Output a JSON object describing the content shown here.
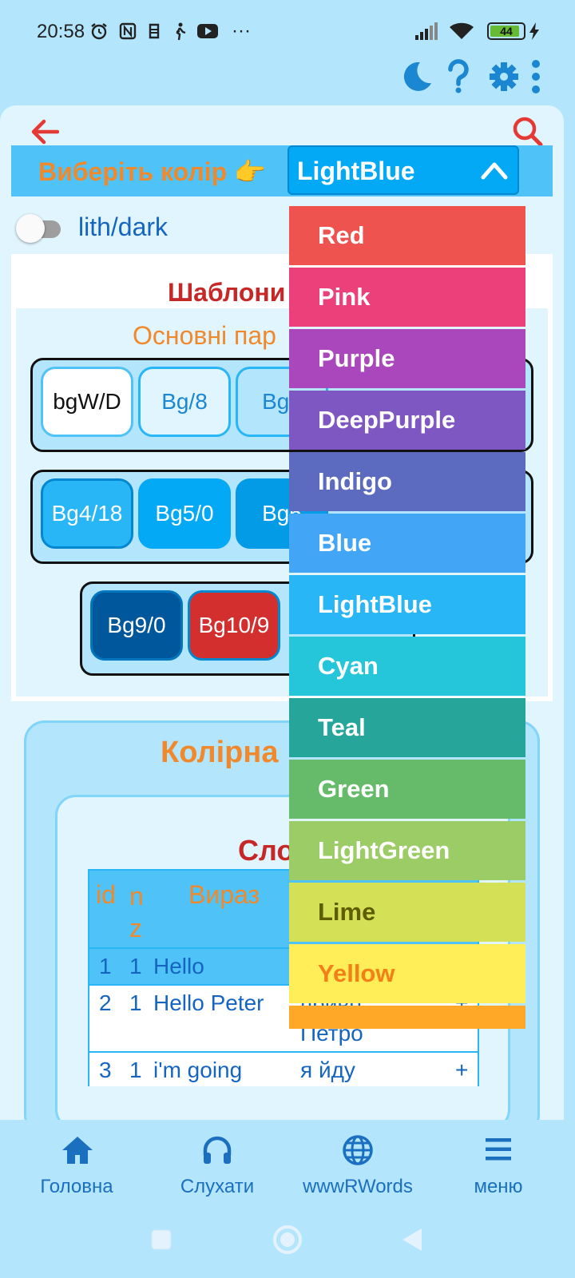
{
  "status_bar": {
    "time": "20:58",
    "more": "···",
    "battery_level": "44"
  },
  "top_icons": [
    "moon-icon",
    "help-icon",
    "gear-icon",
    "kebab-menu-icon"
  ],
  "header": {
    "back_icon": "arrow-left-icon",
    "search_icon": "search-icon"
  },
  "color_select": {
    "label": "Виберіть колір 👉",
    "value": "LightBlue",
    "options": [
      {
        "label": "Red",
        "bg": "#ef5350",
        "fg": "#ffffff"
      },
      {
        "label": "Pink",
        "bg": "#ec407a",
        "fg": "#ffffff"
      },
      {
        "label": "Purple",
        "bg": "#ab47bc",
        "fg": "#ffffff"
      },
      {
        "label": "DeepPurple",
        "bg": "#7e57c2",
        "fg": "#ffffff"
      },
      {
        "label": "Indigo",
        "bg": "#5c6bc0",
        "fg": "#ffffff"
      },
      {
        "label": "Blue",
        "bg": "#42a5f5",
        "fg": "#ffffff"
      },
      {
        "label": "LightBlue",
        "bg": "#29b6f6",
        "fg": "#ffffff"
      },
      {
        "label": "Cyan",
        "bg": "#26c6da",
        "fg": "#ffffff"
      },
      {
        "label": "Teal",
        "bg": "#26a69a",
        "fg": "#ffffff"
      },
      {
        "label": "Green",
        "bg": "#66bb6a",
        "fg": "#ffffff"
      },
      {
        "label": "LightGreen",
        "bg": "#9ccc65",
        "fg": "#ffffff"
      },
      {
        "label": "Lime",
        "bg": "#d4e157",
        "fg": "#5d5d00"
      },
      {
        "label": "Yellow",
        "bg": "#ffee58",
        "fg": "#f57f17"
      },
      {
        "label": "",
        "bg": "#ffa726",
        "fg": "#ffffff"
      }
    ]
  },
  "toggle": {
    "label": "lith/dark",
    "on": false
  },
  "templates": {
    "title": "Шаблони",
    "subtitle": "Основні пар",
    "row1": [
      "bgW/D",
      "Bg/8",
      "Bg1"
    ],
    "row2": [
      "Bg4/18",
      "Bg5/0",
      "Bg6"
    ],
    "row3": [
      "Bg9/0",
      "Bg10/9"
    ]
  },
  "color_section": {
    "title": "Колірна",
    "dict_title": "Сло"
  },
  "dictionary_table": {
    "headers": {
      "id": "id",
      "nz": "n\nz",
      "phrase": "Вираз"
    },
    "rows": [
      {
        "id": "1",
        "nz": "1",
        "phrase": "Hello",
        "translation": "",
        "mark": ""
      },
      {
        "id": "2",
        "nz": "1",
        "phrase": "Hello Peter",
        "translation": "привіт\nПетро",
        "mark": "+"
      },
      {
        "id": "3",
        "nz": "1",
        "phrase": "i'm going",
        "translation": "я йду",
        "mark": "+"
      }
    ]
  },
  "bottom_nav": [
    {
      "label": "Головна",
      "icon": "home-icon"
    },
    {
      "label": "Слухати",
      "icon": "headphones-icon"
    },
    {
      "label": "wwwRWords",
      "icon": "globe-icon"
    },
    {
      "label": "меню",
      "icon": "hamburger-menu-icon"
    }
  ],
  "colors": {
    "accent_orange": "#f0892c",
    "title_red": "#c62828",
    "primary_blue": "#03a9f4",
    "nav_blue": "#1b6fbf",
    "background": "#b3e5fc"
  }
}
